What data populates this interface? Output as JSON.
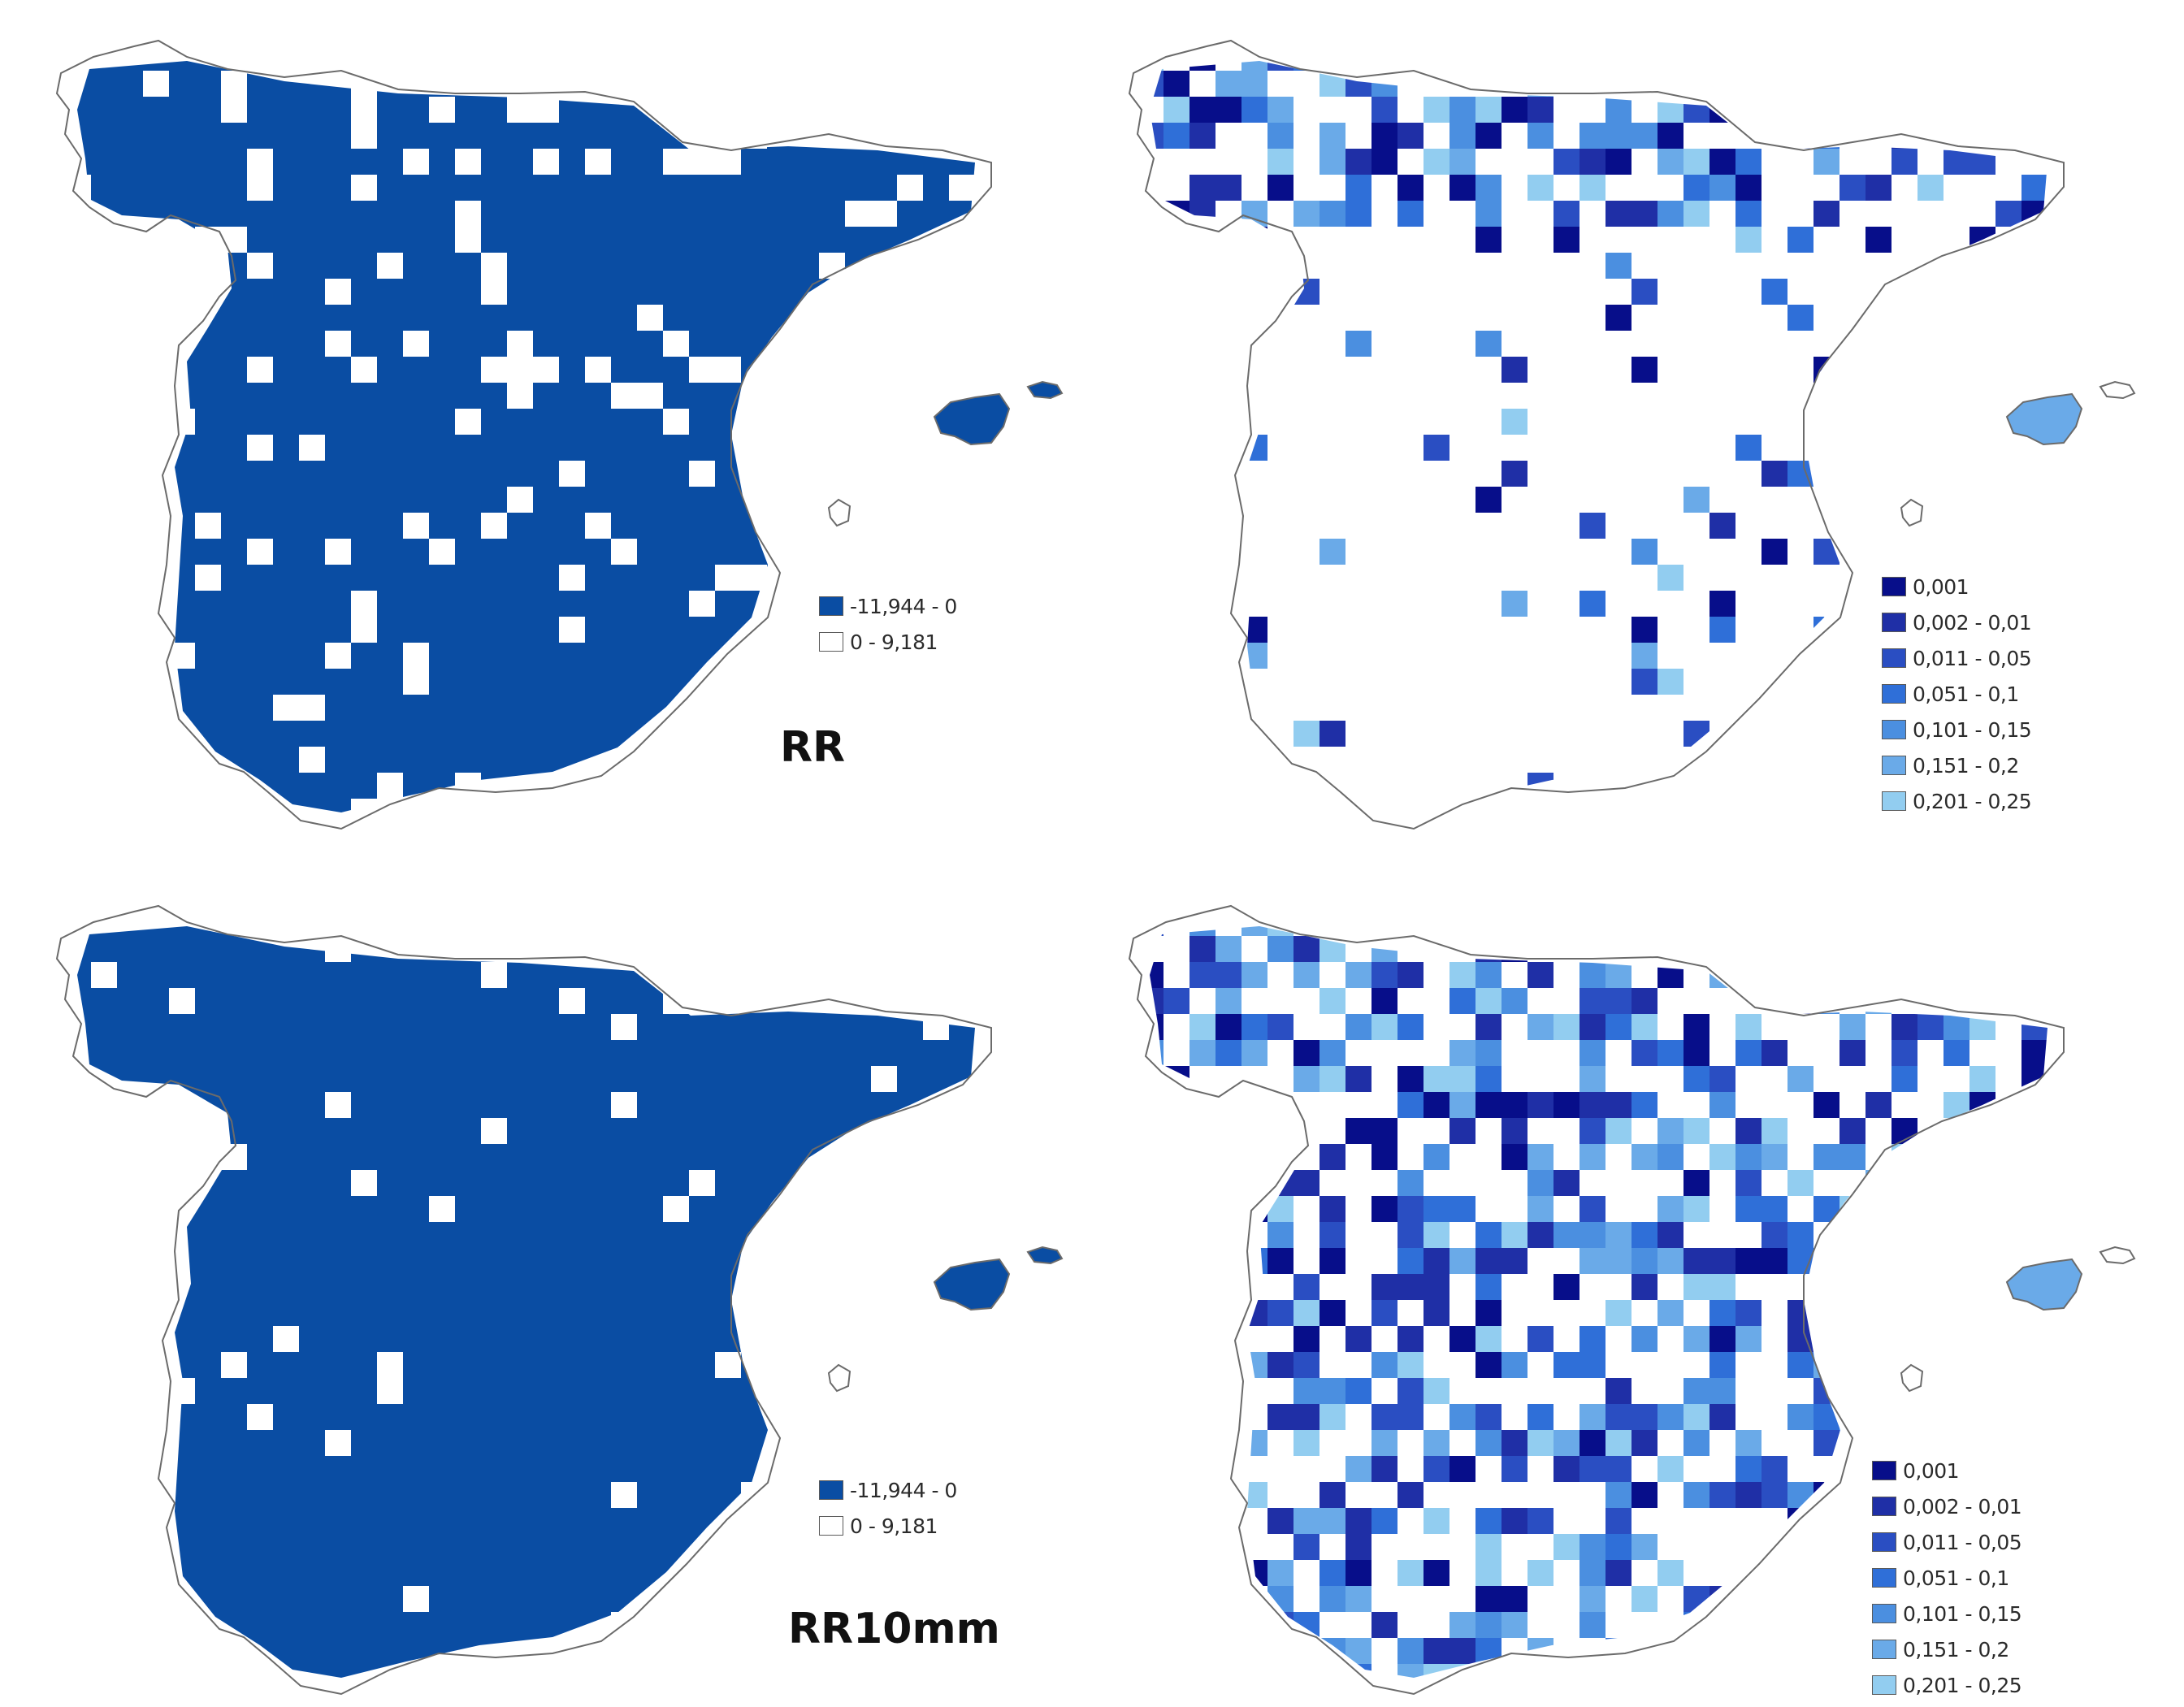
{
  "panels": [
    {
      "id": "rr-trend",
      "label": "RR",
      "legend": [
        {
          "label": "-11,944 - 0",
          "color": "#0a4da3"
        },
        {
          "label": "0 - 9,181",
          "color": "#ffffff"
        }
      ]
    },
    {
      "id": "rr-significance",
      "label": "",
      "legend": [
        {
          "label": "0,001",
          "color": "#070e8a"
        },
        {
          "label": "0,002 - 0,01",
          "color": "#1f2fa6"
        },
        {
          "label": "0,011 - 0,05",
          "color": "#2a4ec2"
        },
        {
          "label": "0,051 - 0,1",
          "color": "#2f6fd8"
        },
        {
          "label": "0,101 - 0,15",
          "color": "#4b8fe0"
        },
        {
          "label": "0,151 - 0,2",
          "color": "#6aaae8"
        },
        {
          "label": "0,201 - 0,25",
          "color": "#92cdf0"
        }
      ]
    },
    {
      "id": "rr10mm-trend",
      "label": "RR10mm",
      "legend": [
        {
          "label": "-11,944 - 0",
          "color": "#0a4da3"
        },
        {
          "label": "0 - 9,181",
          "color": "#ffffff"
        }
      ]
    },
    {
      "id": "rr10mm-significance",
      "label": "",
      "legend": [
        {
          "label": "0,001",
          "color": "#070e8a"
        },
        {
          "label": "0,002 - 0,01",
          "color": "#1f2fa6"
        },
        {
          "label": "0,011 - 0,05",
          "color": "#2a4ec2"
        },
        {
          "label": "0,051 - 0,1",
          "color": "#2f6fd8"
        },
        {
          "label": "0,101 - 0,15",
          "color": "#4b8fe0"
        },
        {
          "label": "0,151 - 0,2",
          "color": "#6aaae8"
        },
        {
          "label": "0,201 - 0,25",
          "color": "#92cdf0"
        }
      ]
    }
  ]
}
